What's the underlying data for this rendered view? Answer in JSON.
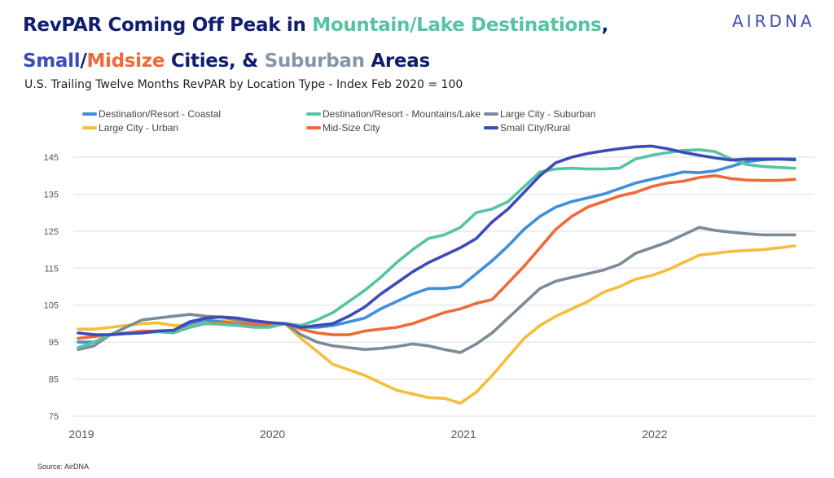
{
  "header": {
    "title_line1": [
      {
        "text": "RevPAR Coming Off Peak in ",
        "color": "#0f1e6e"
      },
      {
        "text": "Mountain/Lake Destinations",
        "color": "#55c3a4"
      },
      {
        "text": ",",
        "color": "#0f1e6e"
      }
    ],
    "title_line2": [
      {
        "text": "Small",
        "color": "#3c4bb8"
      },
      {
        "text": "/",
        "color": "#0f1e6e"
      },
      {
        "text": "Midsize",
        "color": "#ef6a3a"
      },
      {
        "text": " Cities, & ",
        "color": "#0f1e6e"
      },
      {
        "text": "Suburban",
        "color": "#8696a6"
      },
      {
        "text": " Areas",
        "color": "#0f1e6e"
      }
    ],
    "subtitle": "U.S. Trailing Twelve Months RevPAR by Location Type -  Index Feb 2020 = 100",
    "logo": "AIRDNA"
  },
  "source": "Source: AirDNA",
  "chart_data": {
    "type": "line",
    "title": "U.S. Trailing Twelve Months RevPAR by Location Type - Index Feb 2020 = 100",
    "xlabel": "",
    "ylabel": "",
    "ylim": [
      75,
      145
    ],
    "yticks": [
      75,
      85,
      95,
      105,
      115,
      125,
      135,
      145
    ],
    "xtick_labels": [
      "2019",
      "2020",
      "2021",
      "2022"
    ],
    "xtick_index": [
      0,
      12,
      24,
      36
    ],
    "grid": true,
    "legend_position": "top",
    "x": [
      "2019-01",
      "2019-02",
      "2019-03",
      "2019-04",
      "2019-05",
      "2019-06",
      "2019-07",
      "2019-08",
      "2019-09",
      "2019-10",
      "2019-11",
      "2019-12",
      "2020-01",
      "2020-02",
      "2020-03",
      "2020-04",
      "2020-05",
      "2020-06",
      "2020-07",
      "2020-08",
      "2020-09",
      "2020-10",
      "2020-11",
      "2020-12",
      "2021-01",
      "2021-02",
      "2021-03",
      "2021-04",
      "2021-05",
      "2021-06",
      "2021-07",
      "2021-08",
      "2021-09",
      "2021-10",
      "2021-11",
      "2021-12",
      "2022-01",
      "2022-02",
      "2022-03",
      "2022-04",
      "2022-05",
      "2022-06",
      "2022-07",
      "2022-08",
      "2022-09",
      "2022-10"
    ],
    "series": [
      {
        "name": "Destination/Resort - Coastal",
        "color": "#3f8fdc",
        "values": [
          95,
          95,
          97,
          97.5,
          97.5,
          98,
          98,
          100,
          101,
          100.5,
          100,
          99.5,
          99.5,
          100,
          99,
          99,
          99.5,
          100.5,
          101.5,
          104,
          106,
          108,
          109.5,
          109.5,
          110,
          113.5,
          117,
          121,
          125.5,
          129,
          131.5,
          133,
          134,
          135,
          136.5,
          138,
          139,
          140,
          141,
          140.8,
          141.3,
          142.5,
          143.8,
          144.3,
          144.5,
          144.5
        ]
      },
      {
        "name": "Destination/Resort - Mountains/Lake",
        "color": "#55c3a4",
        "values": [
          93.5,
          95,
          97,
          97.5,
          97.5,
          97.8,
          97.5,
          99,
          100,
          99.8,
          99.5,
          99,
          99,
          100,
          99.5,
          101,
          103,
          106,
          109,
          112.5,
          116.5,
          120,
          123,
          124,
          126,
          130,
          131,
          133,
          137,
          141,
          141.8,
          142,
          141.8,
          141.8,
          142,
          144.5,
          145.5,
          146.2,
          146.8,
          147,
          146.5,
          144.5,
          143,
          142.5,
          142.2,
          142
        ]
      },
      {
        "name": "Large City - Suburban",
        "color": "#7b8b99",
        "values": [
          93,
          94,
          97,
          99,
          101,
          101.5,
          102,
          102.5,
          102,
          101.8,
          101,
          100.5,
          100,
          100,
          97,
          95,
          94,
          93.5,
          93,
          93.3,
          93.8,
          94.5,
          94,
          93,
          92.2,
          94.5,
          97.5,
          101.5,
          105.5,
          109.5,
          111.5,
          112.5,
          113.5,
          114.5,
          116,
          119,
          120.5,
          122,
          124,
          126,
          125.2,
          124.7,
          124.3,
          124,
          124,
          124
        ]
      },
      {
        "name": "Large City - Urban",
        "color": "#f5bd3c",
        "values": [
          98.5,
          98.5,
          99,
          99.5,
          100,
          100.2,
          99.5,
          99.5,
          100.3,
          100.8,
          100.5,
          100,
          99.5,
          100,
          96,
          92.5,
          89,
          87.5,
          86,
          84,
          82,
          81,
          80,
          79.8,
          78.5,
          81.5,
          86,
          91,
          96,
          99.5,
          102,
          104,
          106,
          108.5,
          110,
          112,
          113,
          114.5,
          116.5,
          118.5,
          119,
          119.5,
          119.8,
          120,
          120.5,
          121
        ]
      },
      {
        "name": "Mid-Size City",
        "color": "#ef6a3a",
        "values": [
          96,
          96.5,
          97,
          97.5,
          98,
          98,
          97.8,
          99,
          100,
          100.2,
          100,
          99.8,
          99.5,
          100,
          98.5,
          97.5,
          97,
          97,
          98,
          98.5,
          99,
          100,
          101.5,
          103,
          104,
          105.5,
          106.5,
          111,
          115.5,
          120.5,
          125.5,
          129,
          131.5,
          133,
          134.5,
          135.5,
          137,
          138,
          138.5,
          139.5,
          140,
          139.2,
          138.8,
          138.7,
          138.7,
          139
        ]
      },
      {
        "name": "Small City/Rural",
        "color": "#3c4bb8",
        "values": [
          97.5,
          97,
          97,
          97.3,
          97.5,
          98,
          98.2,
          100.5,
          101.5,
          101.8,
          101.5,
          100.8,
          100.3,
          100,
          99,
          99.5,
          100,
          102,
          104.5,
          108,
          111,
          114,
          116.5,
          118.5,
          120.5,
          123,
          127.5,
          131,
          135.5,
          140,
          143.5,
          145,
          146,
          146.7,
          147.3,
          147.8,
          148,
          147.3,
          146.3,
          145.5,
          144.8,
          144.2,
          144.5,
          144.5,
          144.5,
          144.3
        ]
      }
    ]
  }
}
